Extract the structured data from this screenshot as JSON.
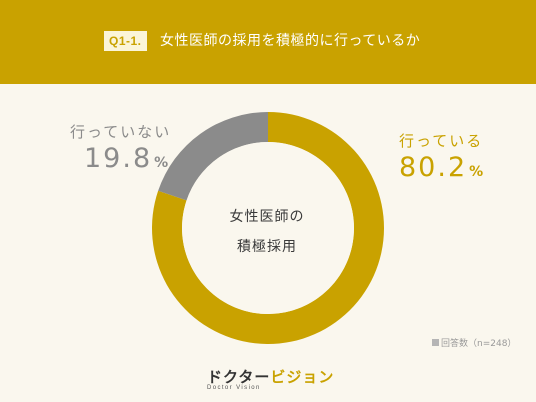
{
  "header": {
    "badge": "Q1-1.",
    "title": "女性医師の採用を積極的に行っているか"
  },
  "chart_data": {
    "type": "pie",
    "title": "女性医師の採用を積極的に行っているか",
    "center_label_line1": "女性医師の",
    "center_label_line2": "積極採用",
    "slices": [
      {
        "label": "行っている",
        "value": 80.2,
        "color": "#c9a200"
      },
      {
        "label": "行っていない",
        "value": 19.8,
        "color": "#8b8b8b"
      }
    ],
    "unit": "%",
    "note": "回答数（n=248）"
  },
  "labels": {
    "no_label": "行っていない",
    "no_value": "19.8",
    "yes_label": "行っている",
    "yes_value": "80.2",
    "unit": "%"
  },
  "footer": {
    "logo_jp_dark": "ドクター",
    "logo_jp_accent": "ビジョン",
    "logo_en": "Doctor Vision"
  }
}
